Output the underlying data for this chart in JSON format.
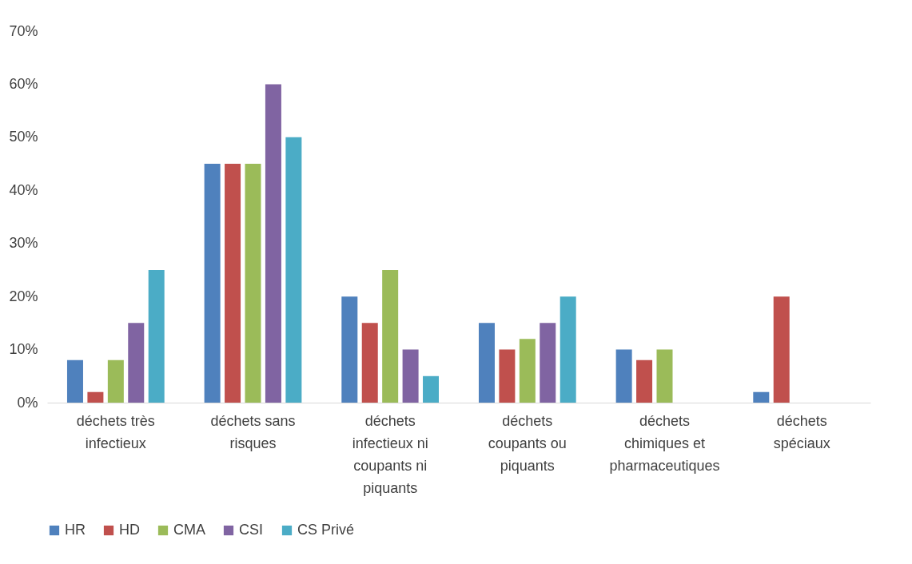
{
  "chart_data": {
    "type": "bar",
    "categories": [
      "déchets très infectieux",
      "déchets sans risques",
      "déchets infectieux ni coupants ni piquants",
      "déchets coupants ou piquants",
      "déchets chimiques et pharmaceutiques",
      "déchets spéciaux"
    ],
    "series": [
      {
        "name": "HR",
        "color": "#4f81bd",
        "values": [
          8,
          45,
          20,
          15,
          10,
          2
        ]
      },
      {
        "name": "HD",
        "color": "#c0504d",
        "values": [
          2,
          45,
          15,
          10,
          8,
          20
        ]
      },
      {
        "name": "CMA",
        "color": "#9bbb59",
        "values": [
          8,
          45,
          25,
          12,
          10,
          0
        ]
      },
      {
        "name": "CSI",
        "color": "#8064a2",
        "values": [
          15,
          60,
          10,
          15,
          0,
          0
        ]
      },
      {
        "name": "CS Privé",
        "color": "#4bacc6",
        "values": [
          25,
          50,
          5,
          20,
          0,
          0
        ]
      }
    ],
    "ylim": [
      0,
      70
    ],
    "yticks": [
      {
        "value": 0,
        "label": "0%"
      },
      {
        "value": 10,
        "label": "10%"
      },
      {
        "value": 20,
        "label": "20%"
      },
      {
        "value": 30,
        "label": "30%"
      },
      {
        "value": 40,
        "label": "40%"
      },
      {
        "value": 50,
        "label": "50%"
      },
      {
        "value": 60,
        "label": "60%"
      },
      {
        "value": 70,
        "label": "70%"
      }
    ],
    "grid": false,
    "legend": "bottom"
  }
}
